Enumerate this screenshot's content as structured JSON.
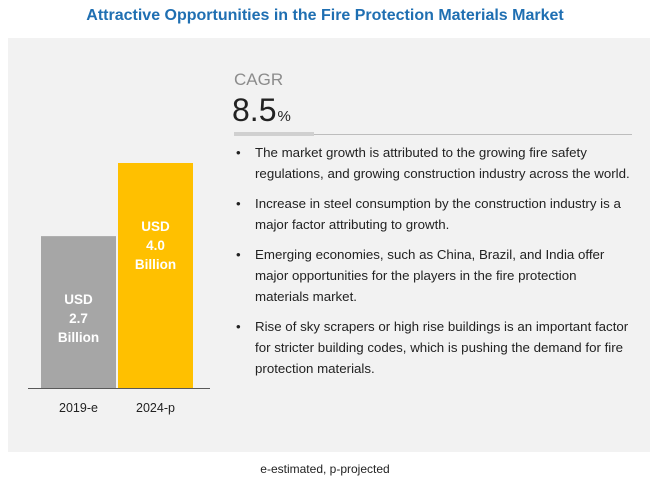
{
  "title": "Attractive Opportunities in the Fire Protection Materials Market",
  "cagr": {
    "label": "CAGR",
    "value": "8.5",
    "unit": "%"
  },
  "bullets": [
    "The market growth is attributed to the growing fire safety regulations, and growing construction industry across the world.",
    "Increase in steel consumption by the construction industry is a major factor attributing to growth.",
    "Emerging economies, such as China, Brazil, and India offer major opportunities for the players in the fire protection materials market.",
    "Rise of sky scrapers or high rise buildings is an important factor for stricter building codes, which is pushing the demand for fire protection materials."
  ],
  "bullet_glyph": "•",
  "footnote": "e-estimated, p-projected",
  "chart_data": {
    "type": "bar",
    "categories": [
      "2019-e",
      "2024-p"
    ],
    "values": [
      2.7,
      4.0
    ],
    "bar_labels": [
      [
        "USD",
        "2.7",
        "Billion"
      ],
      [
        "USD",
        "4.0",
        "Billion"
      ]
    ],
    "colors": [
      "#a6a6a6",
      "#ffc000"
    ],
    "label_color": "#ffffff",
    "axis_color": "#595959",
    "ylim": [
      0,
      4.0
    ],
    "title": "",
    "xlabel": "",
    "ylabel": ""
  }
}
